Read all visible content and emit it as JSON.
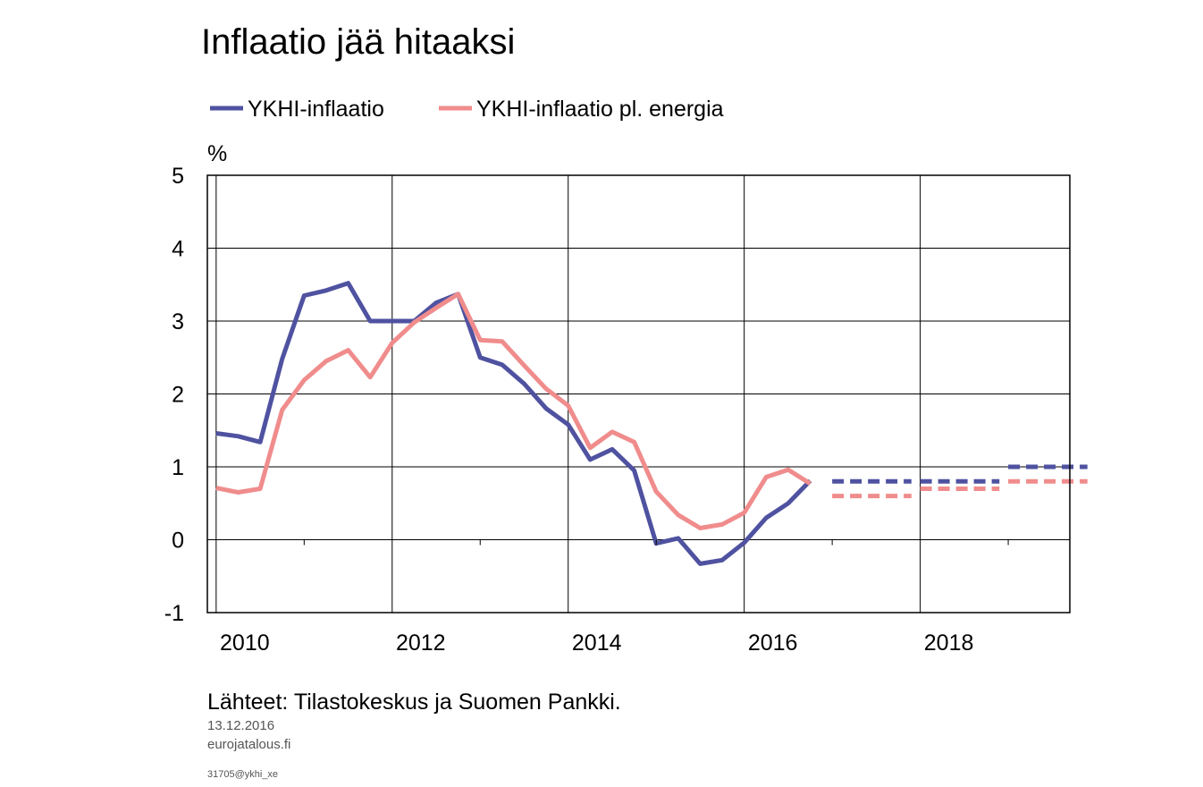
{
  "chart_data": {
    "type": "line",
    "title": "Inflaatio jää hitaaksi",
    "ylabel": "%",
    "xlabel": "",
    "ylim": [
      -1,
      5
    ],
    "xlim": [
      2009.9,
      2019.7
    ],
    "yticks": [
      "5",
      "4",
      "3",
      "2",
      "1",
      "0",
      "-1"
    ],
    "ytick_values": [
      5,
      4,
      3,
      2,
      1,
      0,
      -1
    ],
    "xticks": [
      "2010",
      "2012",
      "2014",
      "2016",
      "2018"
    ],
    "xtick_values": [
      2010,
      2012,
      2014,
      2016,
      2018
    ],
    "grid": true,
    "legend_position": "top-left",
    "series": [
      {
        "name": "YKHI-inflaatio",
        "color": "#4f52a0",
        "x": [
          2010.0,
          2010.25,
          2010.5,
          2010.75,
          2011.0,
          2011.25,
          2011.5,
          2011.75,
          2012.0,
          2012.25,
          2012.5,
          2012.75,
          2013.0,
          2013.25,
          2013.5,
          2013.75,
          2014.0,
          2014.25,
          2014.5,
          2014.75,
          2015.0,
          2015.25,
          2015.5,
          2015.75,
          2016.0,
          2016.25,
          2016.5,
          2016.75
        ],
        "y": [
          1.46,
          1.42,
          1.34,
          2.48,
          3.35,
          3.42,
          3.52,
          3.0,
          3.0,
          3.0,
          3.25,
          3.37,
          2.5,
          2.4,
          2.14,
          1.8,
          1.58,
          1.1,
          1.24,
          0.95,
          -0.05,
          0.02,
          -0.33,
          -0.28,
          -0.04,
          0.3,
          0.5,
          0.81
        ]
      },
      {
        "name": "YKHI-inflaatio pl. energia",
        "color": "#f08c8c",
        "x": [
          2010.0,
          2010.25,
          2010.5,
          2010.75,
          2011.0,
          2011.25,
          2011.5,
          2011.75,
          2012.0,
          2012.25,
          2012.5,
          2012.75,
          2013.0,
          2013.25,
          2013.5,
          2013.75,
          2014.0,
          2014.25,
          2014.5,
          2014.75,
          2015.0,
          2015.25,
          2015.5,
          2015.75,
          2016.0,
          2016.25,
          2016.5,
          2016.75
        ],
        "y": [
          0.71,
          0.65,
          0.7,
          1.78,
          2.19,
          2.45,
          2.6,
          2.23,
          2.7,
          2.98,
          3.18,
          3.37,
          2.74,
          2.72,
          2.39,
          2.07,
          1.84,
          1.26,
          1.48,
          1.34,
          0.66,
          0.34,
          0.16,
          0.21,
          0.37,
          0.86,
          0.96,
          0.77
        ]
      }
    ],
    "forecast_series": [
      {
        "name": "YKHI-inflaatio",
        "color": "#4f52a0",
        "segments": [
          {
            "x": [
              2017.0,
              2017.9
            ],
            "y": [
              0.8,
              0.8
            ]
          },
          {
            "x": [
              2018.0,
              2018.9
            ],
            "y": [
              0.8,
              0.8
            ]
          },
          {
            "x": [
              2019.0,
              2019.9
            ],
            "y": [
              1.0,
              1.0
            ]
          }
        ]
      },
      {
        "name": "YKHI-inflaatio pl. energia",
        "color": "#f08c8c",
        "segments": [
          {
            "x": [
              2017.0,
              2017.9
            ],
            "y": [
              0.6,
              0.6
            ]
          },
          {
            "x": [
              2018.0,
              2018.9
            ],
            "y": [
              0.7,
              0.7
            ]
          },
          {
            "x": [
              2019.0,
              2019.9
            ],
            "y": [
              0.8,
              0.8
            ]
          }
        ]
      }
    ]
  },
  "footer": {
    "source": "Lähteet: Tilastokeskus ja Suomen Pankki.",
    "date": "13.12.2016",
    "site": "eurojatalous.fi",
    "code": "31705@ykhi_xe"
  }
}
